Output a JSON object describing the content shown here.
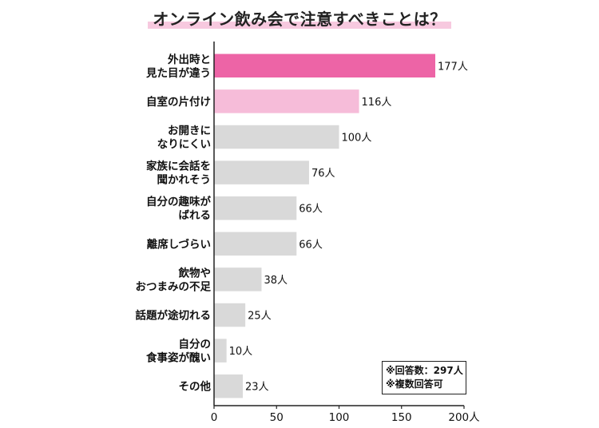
{
  "colors": {
    "highlight_1": "#ed64a6",
    "highlight_2": "#f6bcd9",
    "default_bar": "#d9d9d9",
    "text": "#111111"
  },
  "chart_data": {
    "type": "bar",
    "orientation": "horizontal",
    "title": "オンライン飲み会で注意すべきことは？",
    "categories": [
      "外出時と\n見た目が違う",
      "自室の片付け",
      "お開きに\nなりにくい",
      "家族に会話を\n聞かれそう",
      "自分の趣味が\nばれる",
      "離席しづらい",
      "飲物や\nおつまみの不足",
      "話題が途切れる",
      "自分の\n食事姿が醜い",
      "その他"
    ],
    "values": [
      177,
      116,
      100,
      76,
      66,
      66,
      38,
      25,
      10,
      23
    ],
    "value_labels": [
      "177人",
      "116人",
      "100人",
      "76人",
      "66人",
      "66人",
      "38人",
      "25人",
      "10人",
      "23人"
    ],
    "xlim": [
      0,
      200
    ],
    "xticks": [
      0,
      50,
      100,
      150,
      200
    ],
    "xtick_labels": [
      "0",
      "50",
      "100",
      "150",
      "200人"
    ],
    "grid": false,
    "legend": "none"
  },
  "note": {
    "line1": "※回答数：297人",
    "line2": "※複数回答可"
  }
}
